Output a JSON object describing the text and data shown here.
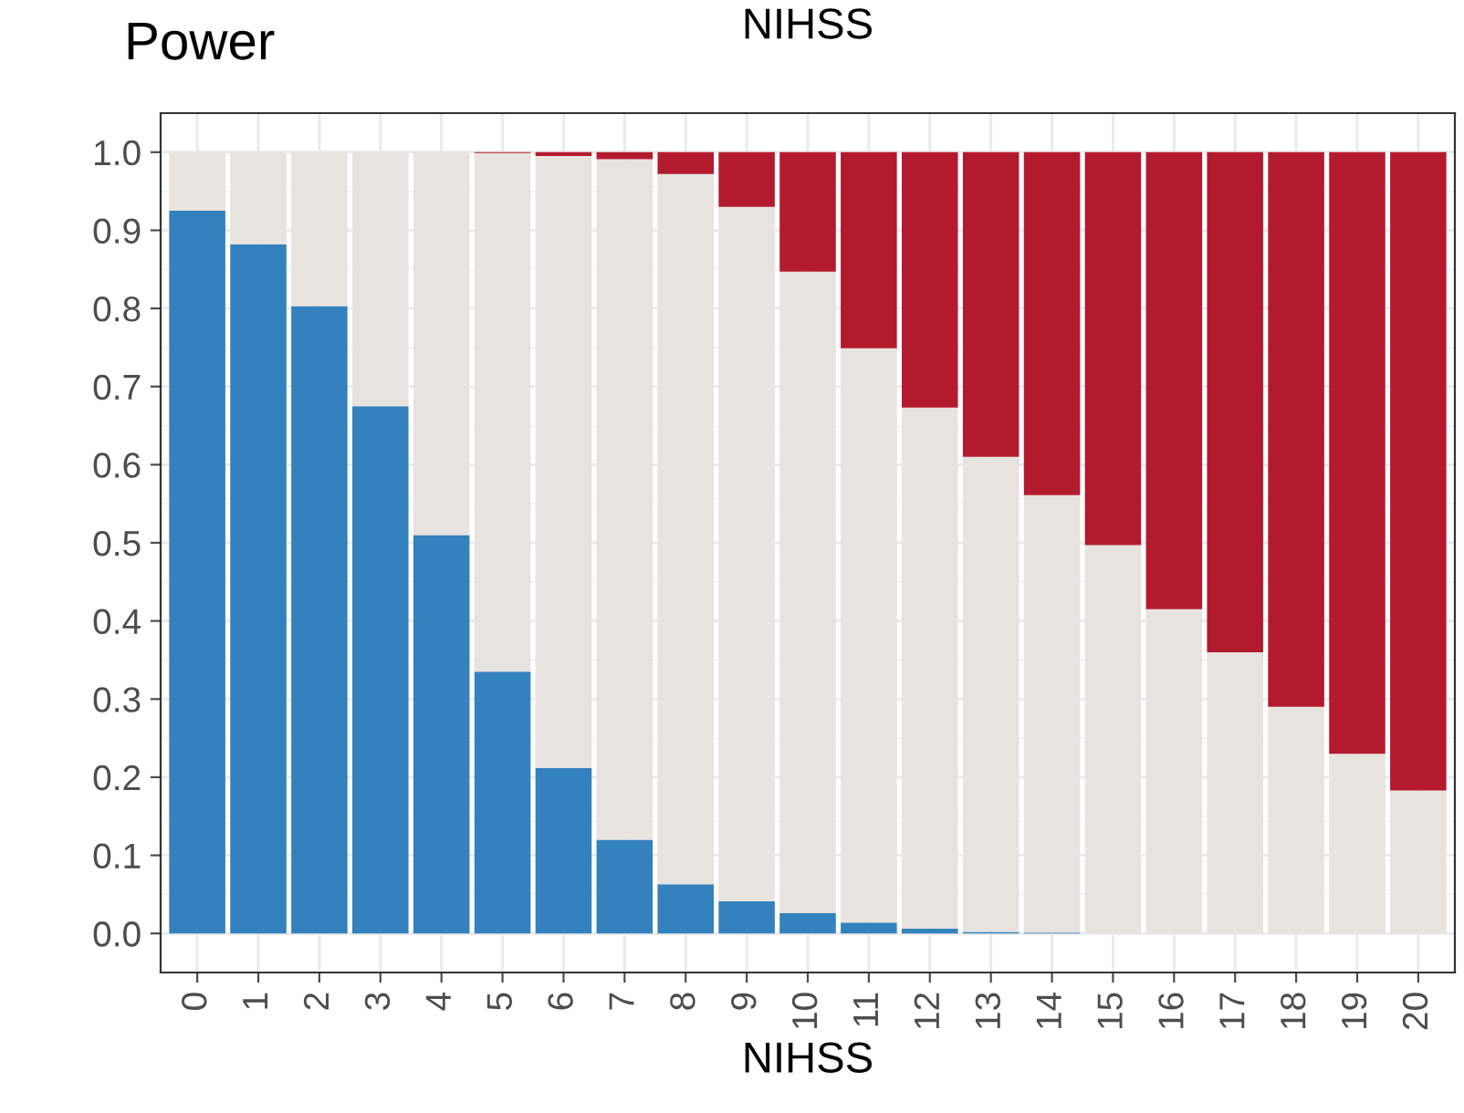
{
  "chart_data": {
    "type": "bar",
    "title": "NIHSS",
    "ylabel": "Power",
    "xlabel": "NIHSS",
    "categories": [
      "0",
      "1",
      "2",
      "3",
      "4",
      "5",
      "6",
      "7",
      "8",
      "9",
      "10",
      "11",
      "12",
      "13",
      "14",
      "15",
      "16",
      "17",
      "18",
      "19",
      "20"
    ],
    "stacked": true,
    "series": [
      {
        "color": "#3381bd",
        "values": [
          0.925,
          0.882,
          0.803,
          0.675,
          0.51,
          0.335,
          0.212,
          0.12,
          0.063,
          0.041,
          0.026,
          0.014,
          0.006,
          0.002,
          0.001,
          0,
          0,
          0,
          0,
          0,
          0
        ]
      },
      {
        "color": "#e7e3df",
        "values": [
          0.075,
          0.118,
          0.197,
          0.325,
          0.49,
          0.664,
          0.783,
          0.871,
          0.909,
          0.889,
          0.821,
          0.735,
          0.667,
          0.608,
          0.56,
          0.497,
          0.415,
          0.36,
          0.29,
          0.23,
          0.183
        ]
      },
      {
        "color": "#b41a2e",
        "values": [
          0,
          0,
          0,
          0,
          0,
          0.001,
          0.005,
          0.009,
          0.028,
          0.07,
          0.153,
          0.251,
          0.327,
          0.39,
          0.439,
          0.503,
          0.585,
          0.64,
          0.71,
          0.77,
          0.817
        ]
      }
    ],
    "ylim": [
      -0.05,
      1.05
    ],
    "yticks": [
      {
        "value": 0,
        "label": "0.0"
      },
      {
        "value": 0.1,
        "label": "0.1"
      },
      {
        "value": 0.2,
        "label": "0.2"
      },
      {
        "value": 0.3,
        "label": "0.3"
      },
      {
        "value": 0.4,
        "label": "0.4"
      },
      {
        "value": 0.5,
        "label": "0.5"
      },
      {
        "value": 0.6,
        "label": "0.6"
      },
      {
        "value": 0.7,
        "label": "0.7"
      },
      {
        "value": 0.8,
        "label": "0.8"
      },
      {
        "value": 0.9,
        "label": "0.9"
      },
      {
        "value": 1,
        "label": "1.0"
      }
    ],
    "grid": true
  }
}
